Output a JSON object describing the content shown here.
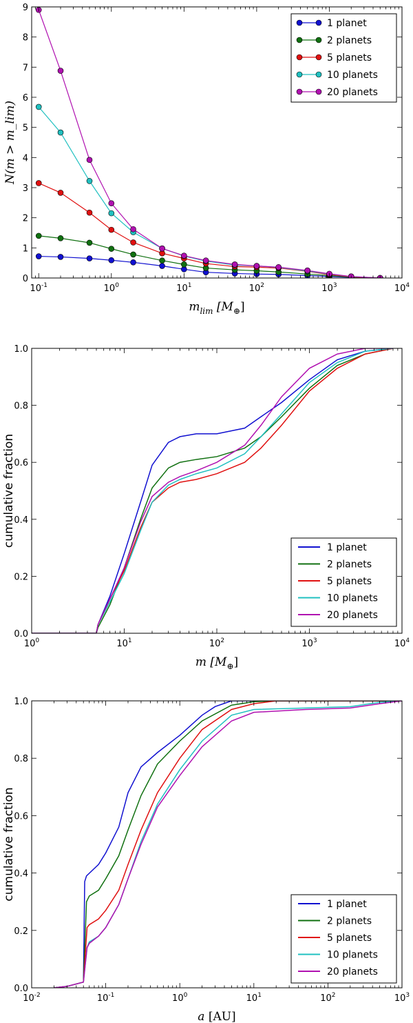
{
  "colors": {
    "series": [
      "#1010d0",
      "#107010",
      "#e01010",
      "#20c0c0",
      "#b010b0"
    ]
  },
  "chart_data": [
    {
      "type": "line",
      "title": "",
      "xlabel_base": "m",
      "xlabel_sub": "lim",
      "xlabel_unit": " [M",
      "xlabel_unit_sub": "⊕",
      "xlabel_close": "]",
      "ylabel": "N(m > m_lim)",
      "xscale": "log",
      "xlim": [
        0.08,
        10000
      ],
      "ylim": [
        0,
        9
      ],
      "x_ticks": [
        {
          "base": "10",
          "exp": "-1"
        },
        {
          "base": "10",
          "exp": "0"
        },
        {
          "base": "10",
          "exp": "1"
        },
        {
          "base": "10",
          "exp": "2"
        },
        {
          "base": "10",
          "exp": "3"
        },
        {
          "base": "10",
          "exp": "4"
        }
      ],
      "x_tick_values": [
        0.1,
        1,
        10,
        100,
        1000,
        10000
      ],
      "y_ticks": [
        "0",
        "1",
        "2",
        "3",
        "4",
        "5",
        "6",
        "7",
        "8",
        "9"
      ],
      "y_tick_values": [
        0,
        1,
        2,
        3,
        4,
        5,
        6,
        7,
        8,
        9
      ],
      "legend_position": "top-right",
      "x": [
        0.1,
        0.2,
        0.5,
        1,
        2,
        5,
        10,
        20,
        50,
        100,
        200,
        500,
        1000,
        2000,
        5000
      ],
      "series": [
        {
          "name": "1 planet",
          "values": [
            0.72,
            0.7,
            0.65,
            0.59,
            0.52,
            0.4,
            0.29,
            0.19,
            0.15,
            0.13,
            0.12,
            0.08,
            0.05,
            0.02,
            0.0
          ]
        },
        {
          "name": "2 planets",
          "values": [
            1.4,
            1.32,
            1.17,
            0.97,
            0.78,
            0.58,
            0.45,
            0.33,
            0.27,
            0.24,
            0.2,
            0.13,
            0.08,
            0.03,
            0.0
          ]
        },
        {
          "name": "5 planets",
          "values": [
            3.15,
            2.83,
            2.17,
            1.6,
            1.18,
            0.82,
            0.65,
            0.48,
            0.38,
            0.36,
            0.33,
            0.22,
            0.11,
            0.04,
            0.0
          ]
        },
        {
          "name": "10 planets",
          "values": [
            5.68,
            4.83,
            3.22,
            2.15,
            1.52,
            0.98,
            0.73,
            0.56,
            0.43,
            0.4,
            0.35,
            0.23,
            0.13,
            0.05,
            0.0
          ]
        },
        {
          "name": "20 planets",
          "values": [
            8.9,
            6.88,
            3.92,
            2.48,
            1.62,
            0.98,
            0.74,
            0.58,
            0.45,
            0.4,
            0.36,
            0.25,
            0.14,
            0.05,
            0.0
          ]
        }
      ]
    },
    {
      "type": "line",
      "title": "",
      "xlabel_base": "m",
      "xlabel_unit": " [M",
      "xlabel_unit_sub": "⊕",
      "xlabel_close": "]",
      "ylabel": "cumulative fraction",
      "xscale": "log",
      "xlim": [
        1,
        10000
      ],
      "ylim": [
        0,
        1
      ],
      "x_ticks": [
        {
          "base": "10",
          "exp": "0"
        },
        {
          "base": "10",
          "exp": "1"
        },
        {
          "base": "10",
          "exp": "2"
        },
        {
          "base": "10",
          "exp": "3"
        },
        {
          "base": "10",
          "exp": "4"
        }
      ],
      "x_tick_values": [
        1,
        10,
        100,
        1000,
        10000
      ],
      "y_ticks": [
        "0.0",
        "0.2",
        "0.4",
        "0.6",
        "0.8",
        "1.0"
      ],
      "y_tick_values": [
        0,
        0.2,
        0.4,
        0.6,
        0.8,
        1.0
      ],
      "legend_position": "bottom-right",
      "series": [
        {
          "name": "1 planet",
          "x": [
            1,
            5,
            5.2,
            7,
            10,
            15,
            20,
            30,
            40,
            60,
            100,
            200,
            300,
            500,
            1000,
            2000,
            4000,
            8000
          ],
          "values": [
            0,
            0,
            0.03,
            0.13,
            0.28,
            0.46,
            0.59,
            0.67,
            0.69,
            0.7,
            0.7,
            0.72,
            0.76,
            0.81,
            0.89,
            0.96,
            0.99,
            1.0
          ]
        },
        {
          "name": "2 planets",
          "x": [
            1,
            5,
            5.2,
            7,
            10,
            15,
            20,
            30,
            40,
            60,
            100,
            200,
            300,
            500,
            1000,
            2000,
            4000,
            8000
          ],
          "values": [
            0,
            0,
            0.02,
            0.1,
            0.23,
            0.4,
            0.51,
            0.58,
            0.6,
            0.61,
            0.62,
            0.65,
            0.69,
            0.76,
            0.86,
            0.94,
            0.98,
            1.0
          ]
        },
        {
          "name": "5 planets",
          "x": [
            1,
            5,
            5.2,
            7,
            10,
            15,
            20,
            30,
            40,
            60,
            100,
            200,
            300,
            500,
            1000,
            2000,
            4000,
            8000
          ],
          "values": [
            0,
            0,
            0.03,
            0.12,
            0.22,
            0.37,
            0.46,
            0.51,
            0.53,
            0.54,
            0.56,
            0.6,
            0.65,
            0.73,
            0.85,
            0.93,
            0.98,
            1.0
          ]
        },
        {
          "name": "10 planets",
          "x": [
            1,
            5,
            5.2,
            7,
            10,
            15,
            20,
            30,
            40,
            60,
            100,
            200,
            300,
            500,
            1000,
            2000,
            4000,
            8000
          ],
          "values": [
            0,
            0,
            0.03,
            0.11,
            0.21,
            0.36,
            0.46,
            0.52,
            0.54,
            0.56,
            0.58,
            0.63,
            0.69,
            0.77,
            0.88,
            0.95,
            0.99,
            1.0
          ]
        },
        {
          "name": "20 planets",
          "x": [
            1,
            5,
            5.2,
            7,
            10,
            15,
            20,
            30,
            40,
            60,
            100,
            200,
            300,
            500,
            1000,
            2000,
            4000,
            8000
          ],
          "values": [
            0,
            0,
            0.03,
            0.12,
            0.23,
            0.39,
            0.48,
            0.53,
            0.55,
            0.57,
            0.6,
            0.66,
            0.73,
            0.83,
            0.93,
            0.98,
            1.0,
            1.0
          ]
        }
      ]
    },
    {
      "type": "line",
      "title": "",
      "xlabel_base": "a",
      "xlabel_unit": " [AU]",
      "ylabel": "cumulative fraction",
      "xscale": "log",
      "xlim": [
        0.01,
        1000
      ],
      "ylim": [
        0,
        1
      ],
      "x_ticks": [
        {
          "base": "10",
          "exp": "-2"
        },
        {
          "base": "10",
          "exp": "-1"
        },
        {
          "base": "10",
          "exp": "0"
        },
        {
          "base": "10",
          "exp": "1"
        },
        {
          "base": "10",
          "exp": "2"
        },
        {
          "base": "10",
          "exp": "3"
        }
      ],
      "x_tick_values": [
        0.01,
        0.1,
        1,
        10,
        100,
        1000
      ],
      "y_ticks": [
        "0.0",
        "0.2",
        "0.4",
        "0.6",
        "0.8",
        "1.0"
      ],
      "y_tick_values": [
        0,
        0.2,
        0.4,
        0.6,
        0.8,
        1.0
      ],
      "legend_position": "bottom-right",
      "series": [
        {
          "name": "1 planet",
          "x": [
            0.02,
            0.03,
            0.05,
            0.052,
            0.055,
            0.08,
            0.1,
            0.15,
            0.2,
            0.3,
            0.5,
            1,
            2,
            3,
            5,
            10,
            1000
          ],
          "values": [
            0,
            0.005,
            0.02,
            0.37,
            0.39,
            0.43,
            0.47,
            0.56,
            0.68,
            0.77,
            0.82,
            0.88,
            0.95,
            0.98,
            1.0,
            1.0,
            1.0
          ]
        },
        {
          "name": "2 planets",
          "x": [
            0.02,
            0.03,
            0.05,
            0.055,
            0.06,
            0.08,
            0.1,
            0.15,
            0.2,
            0.3,
            0.5,
            1,
            2,
            5,
            10,
            20,
            1000
          ],
          "values": [
            0,
            0.005,
            0.02,
            0.3,
            0.32,
            0.34,
            0.38,
            0.46,
            0.55,
            0.67,
            0.78,
            0.86,
            0.93,
            0.985,
            0.997,
            1.0,
            1.0
          ]
        },
        {
          "name": "5 planets",
          "x": [
            0.02,
            0.03,
            0.05,
            0.056,
            0.06,
            0.08,
            0.1,
            0.15,
            0.2,
            0.3,
            0.5,
            1,
            2,
            5,
            10,
            20,
            1000
          ],
          "values": [
            0,
            0.005,
            0.02,
            0.21,
            0.22,
            0.24,
            0.27,
            0.34,
            0.43,
            0.55,
            0.68,
            0.8,
            0.9,
            0.97,
            0.99,
            1.0,
            1.0
          ]
        },
        {
          "name": "10 planets",
          "x": [
            0.02,
            0.03,
            0.05,
            0.056,
            0.06,
            0.08,
            0.1,
            0.15,
            0.2,
            0.3,
            0.5,
            1,
            2,
            5,
            10,
            50,
            200,
            500,
            1000
          ],
          "values": [
            0,
            0.005,
            0.02,
            0.14,
            0.16,
            0.18,
            0.21,
            0.29,
            0.38,
            0.51,
            0.64,
            0.76,
            0.86,
            0.95,
            0.97,
            0.975,
            0.98,
            0.995,
            1.0
          ]
        },
        {
          "name": "20 planets",
          "x": [
            0.02,
            0.03,
            0.05,
            0.056,
            0.06,
            0.08,
            0.1,
            0.15,
            0.2,
            0.3,
            0.5,
            1,
            2,
            5,
            10,
            50,
            200,
            500,
            1000
          ],
          "values": [
            0,
            0.005,
            0.02,
            0.14,
            0.155,
            0.18,
            0.21,
            0.29,
            0.38,
            0.5,
            0.63,
            0.74,
            0.84,
            0.93,
            0.96,
            0.97,
            0.975,
            0.99,
            1.0
          ]
        }
      ]
    }
  ]
}
